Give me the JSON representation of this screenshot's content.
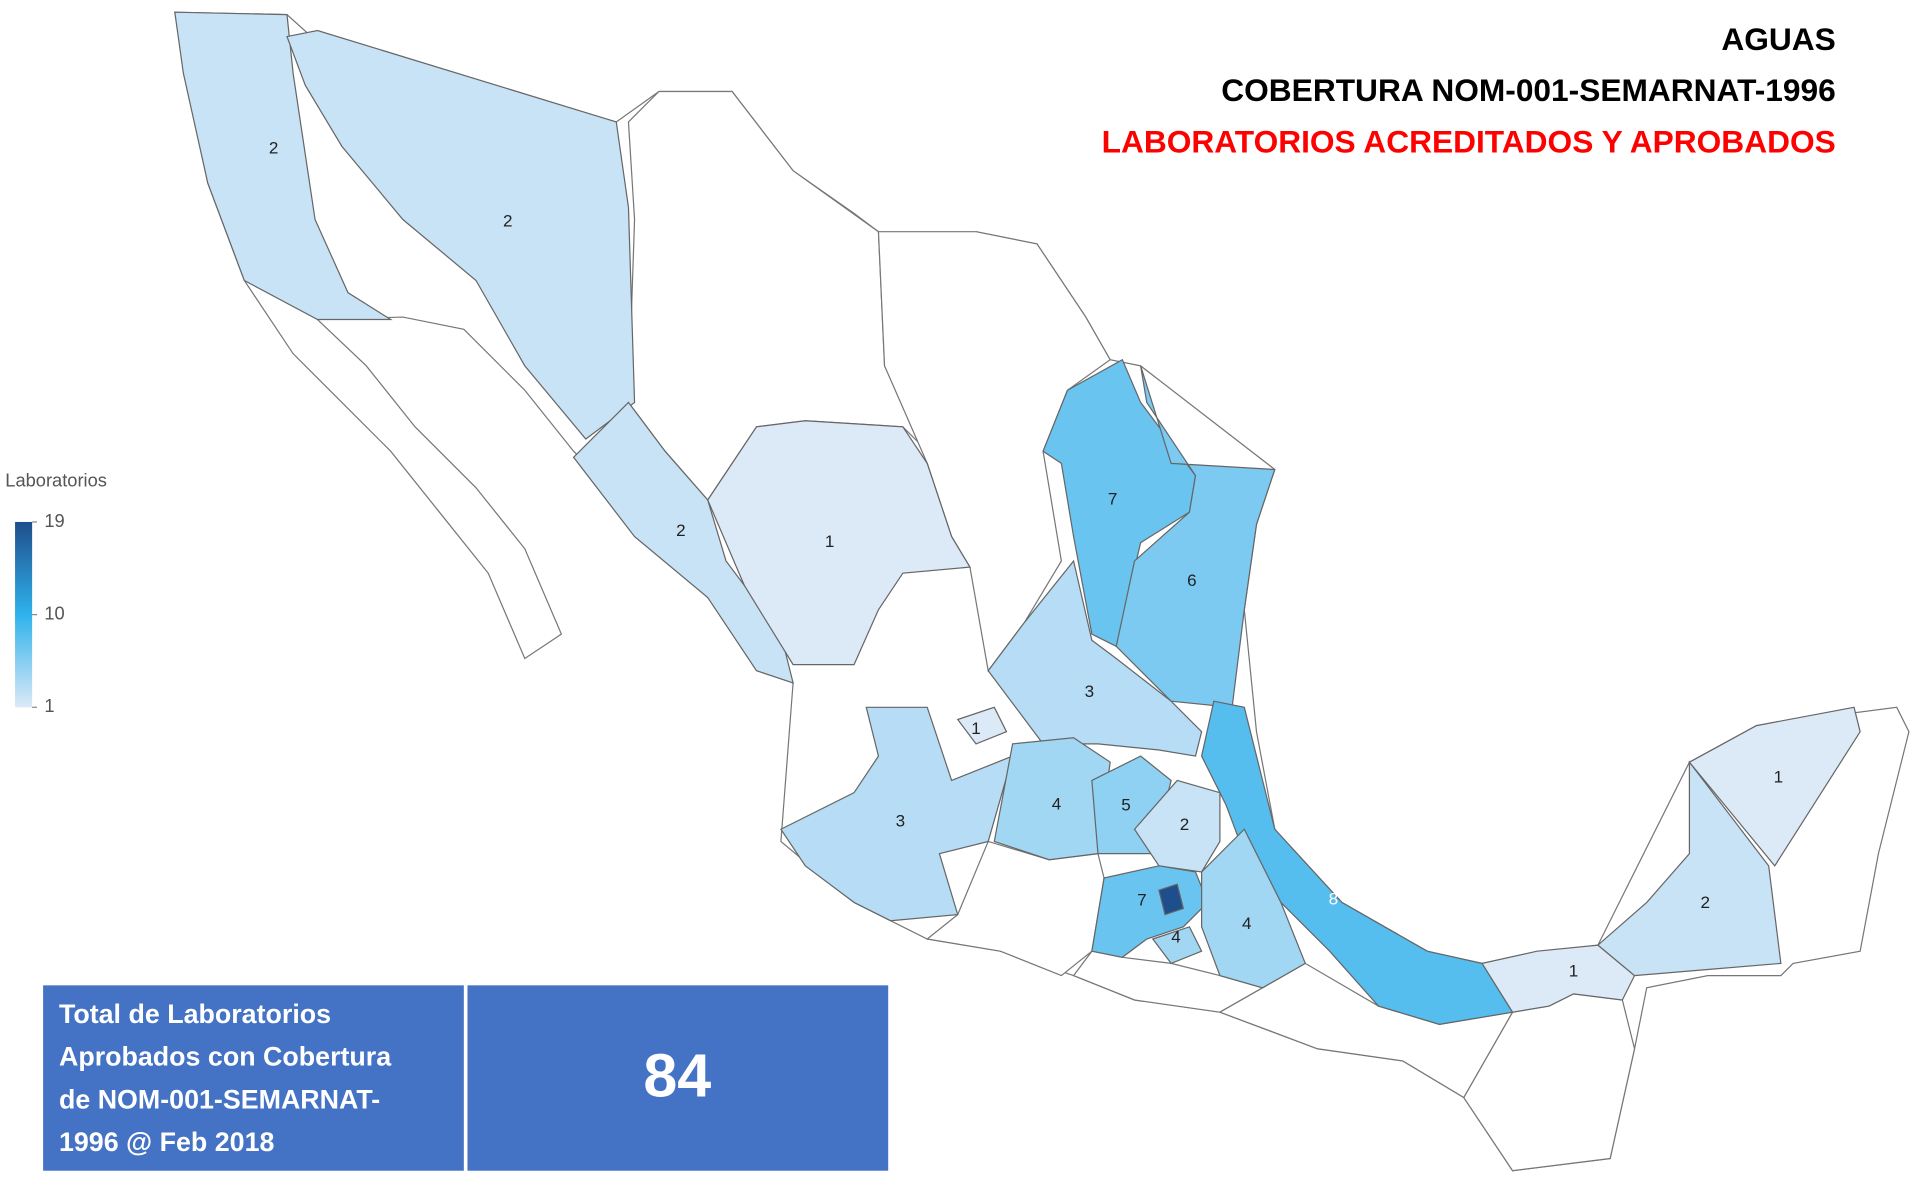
{
  "title_lines": [
    "AGUAS",
    "COBERTURA NOM-001-SEMARNAT-1996",
    "LABORATORIOS ACREDITADOS Y APROBADOS"
  ],
  "title_colors": [
    "#000000",
    "#000000",
    "#ff0000"
  ],
  "legend": {
    "title": "Laboratorios",
    "min": 1,
    "max": 19,
    "ticks": [
      19,
      10,
      1
    ],
    "colors": [
      "#dce9f7",
      "#2fb2ec",
      "#1f4e8c"
    ]
  },
  "regions": [
    {
      "value": 2
    },
    {
      "value": 2
    },
    {
      "value": 2
    },
    {
      "value": 1
    },
    {
      "value": 7
    },
    {
      "value": 6
    },
    {
      "value": 3
    },
    {
      "value": 8
    },
    {
      "value": 3
    },
    {
      "value": 1
    },
    {
      "value": 4
    },
    {
      "value": 5
    },
    {
      "value": 2
    },
    {
      "value": 7
    },
    {
      "value": 4
    },
    {
      "value": 4
    },
    {
      "value": 1
    },
    {
      "value": 2
    },
    {
      "value": 1
    }
  ],
  "unlabeled_regions": [
    19
  ],
  "total_box": {
    "label_lines": [
      "Total de Laboratorios",
      "Aprobados con Cobertura",
      "de NOM-001-SEMARNAT-",
      "1996 @ Feb 2018"
    ],
    "value": 84
  }
}
